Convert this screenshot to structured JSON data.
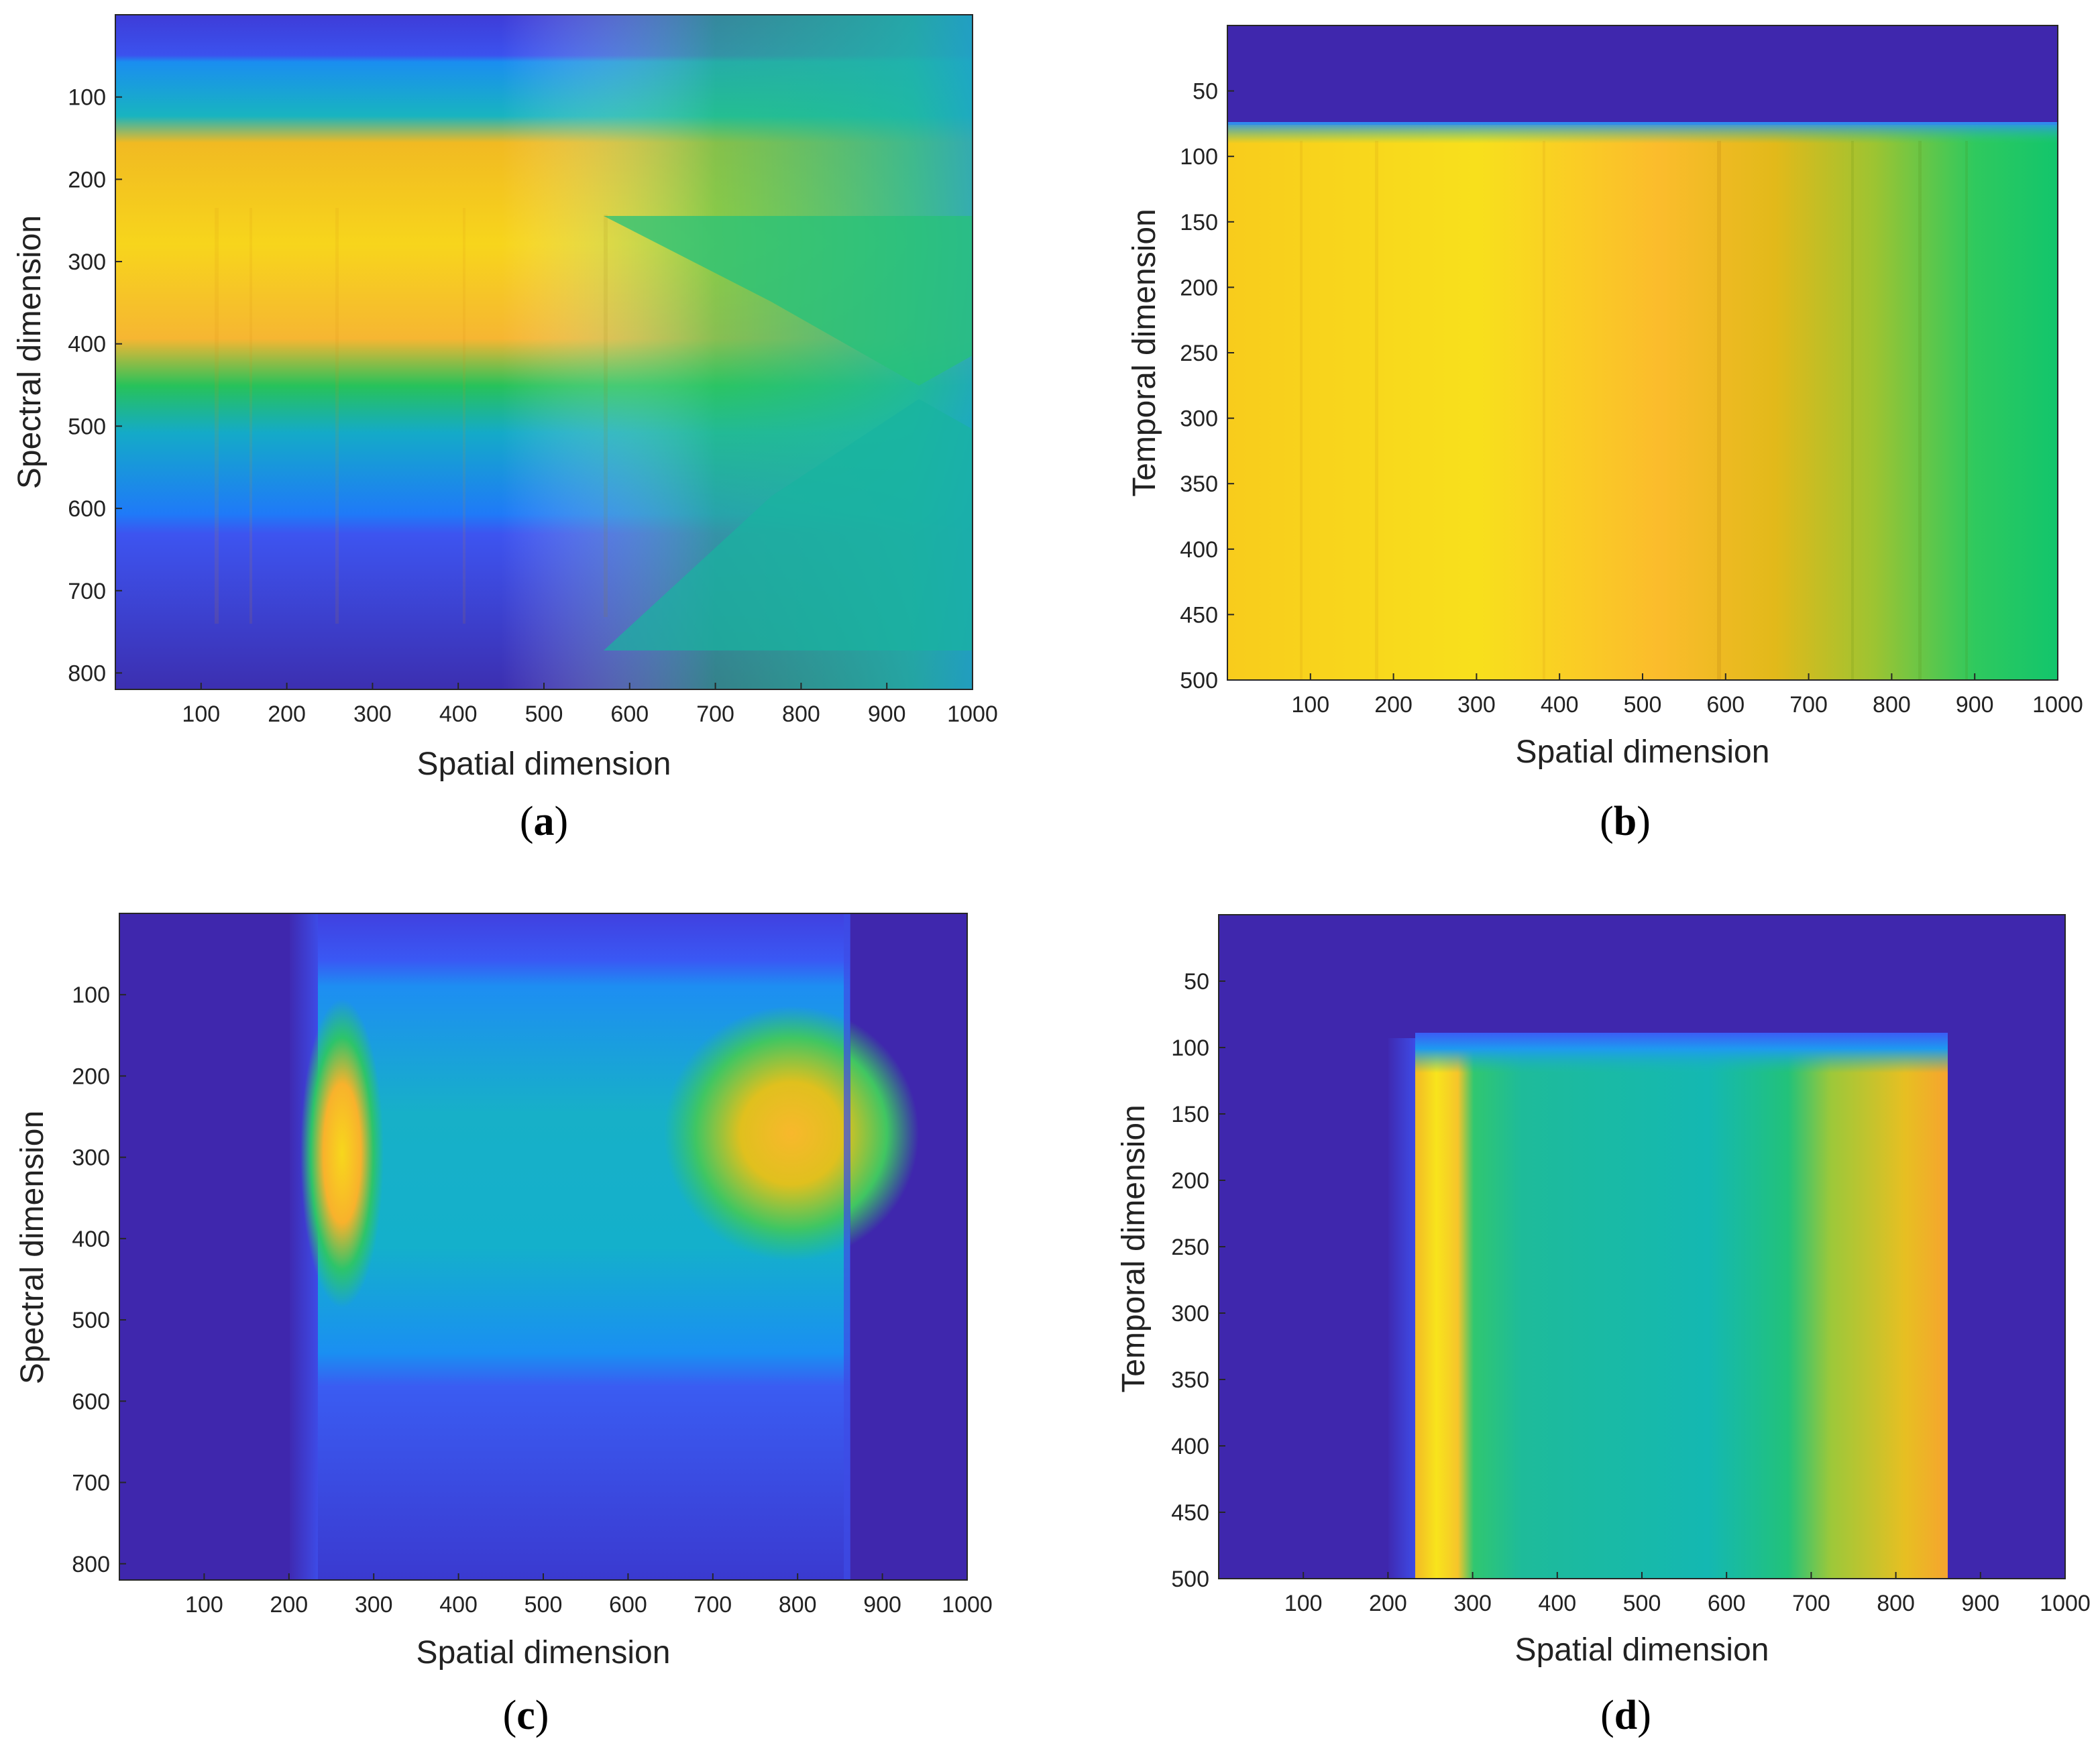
{
  "figure": {
    "colors": {
      "dark": "#3e26a8",
      "blue": "#2f6dfa",
      "cyan": "#1fb5ce",
      "green": "#2ec66c",
      "orange": "#fbb42c",
      "yellow": "#f5e11c"
    }
  },
  "chart_data": [
    {
      "id": "a",
      "type": "heatmap",
      "caption_letter": "a",
      "xlabel": "Spatial dimension",
      "ylabel": "Spectral dimension",
      "xlim": [
        0,
        1000
      ],
      "ylim": [
        0,
        820
      ],
      "y_reversed": true,
      "xticks": [
        "100",
        "200",
        "300",
        "400",
        "500",
        "600",
        "700",
        "800",
        "900",
        "1000"
      ],
      "yticks": [
        "100",
        "200",
        "300",
        "400",
        "500",
        "600",
        "700",
        "800"
      ],
      "description_of_field": "bright (yellow) band centered near spectral 300 for spatial 0-450, narrowing and fading to green by spatial ~950; blue elsewhere, dark blue above 50 and below 650"
    },
    {
      "id": "b",
      "type": "heatmap",
      "caption_letter": "b",
      "xlabel": "Spatial dimension",
      "ylabel": "Temporal dimension",
      "xlim": [
        0,
        1000
      ],
      "ylim": [
        0,
        500
      ],
      "y_reversed": true,
      "xticks": [
        "100",
        "200",
        "300",
        "400",
        "500",
        "600",
        "700",
        "800",
        "900",
        "1000"
      ],
      "yticks": [
        "50",
        "100",
        "150",
        "200",
        "250",
        "300",
        "350",
        "400",
        "450",
        "500"
      ],
      "description_of_field": "dark blue for temporal < ~80; below that yellow at low spatial values transitioning to orange near 600 and green toward 1000"
    },
    {
      "id": "c",
      "type": "heatmap",
      "caption_letter": "c",
      "xlabel": "Spatial dimension",
      "ylabel": "Spectral dimension",
      "xlim": [
        0,
        1000
      ],
      "ylim": [
        0,
        820
      ],
      "y_reversed": true,
      "xticks": [
        "100",
        "200",
        "300",
        "400",
        "500",
        "600",
        "700",
        "800",
        "900",
        "1000"
      ],
      "yticks": [
        "100",
        "200",
        "300",
        "400",
        "500",
        "600",
        "700",
        "800"
      ],
      "description_of_field": "dark background outside spatial 235-865; inside cyan/blue field with bright edge lobes near spatial 250 and 860 centered at spectral ~300"
    },
    {
      "id": "d",
      "type": "heatmap",
      "caption_letter": "d",
      "xlabel": "Spatial dimension",
      "ylabel": "Temporal dimension",
      "xlim": [
        0,
        1000
      ],
      "ylim": [
        0,
        500
      ],
      "y_reversed": true,
      "xticks": [
        "100",
        "200",
        "300",
        "400",
        "500",
        "600",
        "700",
        "800",
        "900",
        "1000"
      ],
      "yticks": [
        "50",
        "100",
        "150",
        "200",
        "250",
        "300",
        "350",
        "400",
        "450",
        "500"
      ],
      "description_of_field": "dark background; block from spatial 240 to 865 starting at temporal ~100: yellow stripe at 240-300, cyan-green center, yellow/orange gradient 690-865"
    }
  ]
}
